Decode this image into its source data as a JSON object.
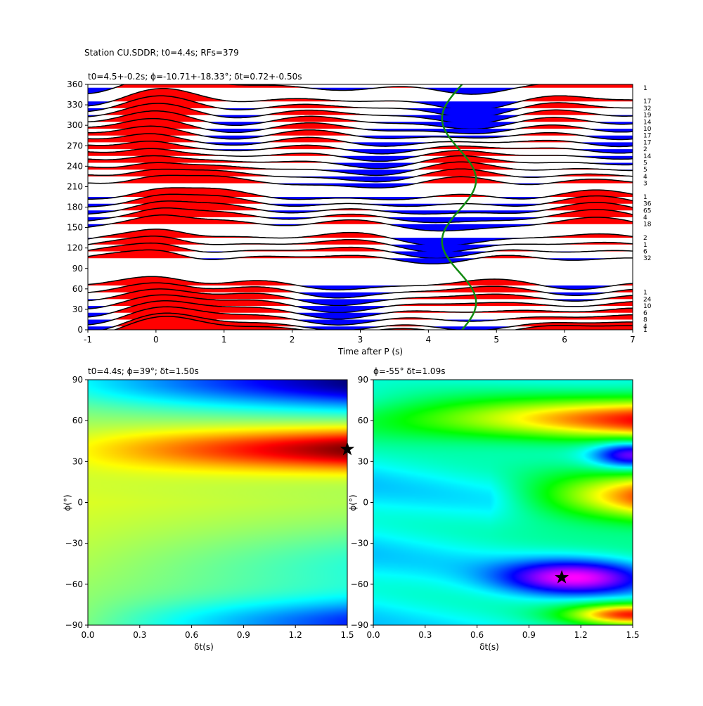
{
  "figure": {
    "suptitle": "Station CU.SDDR; t0=4.4s; RFs=379"
  },
  "chart_data": [
    {
      "type": "wiggle",
      "title": "t0=4.5+-0.2s; ϕ=-10.71+-18.33°; δt=0.72+-0.50s",
      "xlabel": "Time after P (s)",
      "ylabel": "",
      "xlim": [
        -1,
        7
      ],
      "ylim": [
        0,
        360
      ],
      "x_ticks": [
        "-1",
        "0",
        "1",
        "2",
        "3",
        "4",
        "5",
        "6",
        "7"
      ],
      "y_ticks": [
        "0",
        "30",
        "60",
        "90",
        "120",
        "150",
        "180",
        "210",
        "240",
        "270",
        "300",
        "330",
        "360"
      ],
      "trace_backazimuths": [
        0,
        5,
        15,
        25,
        35,
        45,
        55,
        65,
        105,
        115,
        125,
        135,
        155,
        165,
        175,
        185,
        195,
        215,
        225,
        235,
        245,
        255,
        265,
        275,
        285,
        295,
        305,
        315,
        325,
        335,
        355
      ],
      "trace_counts": [
        "1",
        "4",
        "8",
        "6",
        "10",
        "24",
        "1",
        "",
        "32",
        "6",
        "1",
        "2",
        "18",
        "4",
        "65",
        "36",
        "1",
        "3",
        "4",
        "5",
        "5",
        "14",
        "2",
        "17",
        "17",
        "10",
        "14",
        "19",
        "32",
        "17",
        "1"
      ],
      "fill_positive": "#ff0000",
      "fill_negative": "#0000ff",
      "t0_curve": {
        "color": "#118a11",
        "mean": 4.45,
        "amplitude": 0.25,
        "phase_deg": 10
      }
    },
    {
      "type": "heatmap",
      "title": "t0=4.4s; ϕ=39°; δt=1.50s",
      "xlabel": "δt(s)",
      "ylabel": "ϕ(°)",
      "xlim": [
        0,
        1.5
      ],
      "ylim": [
        -90,
        90
      ],
      "x_ticks": [
        "0.0",
        "0.3",
        "0.6",
        "0.9",
        "1.2",
        "1.5"
      ],
      "y_ticks": [
        "−90",
        "−60",
        "−30",
        "0",
        "30",
        "60",
        "90"
      ],
      "colormap": "jet",
      "best": {
        "dt": 1.5,
        "phi": 39
      }
    },
    {
      "type": "heatmap",
      "title": "ϕ=-55° δt=1.09s",
      "xlabel": "δt(s)",
      "ylabel": "ϕ(°)",
      "xlim": [
        0,
        1.5
      ],
      "ylim": [
        -90,
        90
      ],
      "x_ticks": [
        "0.0",
        "0.3",
        "0.6",
        "0.9",
        "1.2",
        "1.5"
      ],
      "y_ticks": [
        "−90",
        "−60",
        "−30",
        "0",
        "30",
        "60",
        "90"
      ],
      "colormap": "hsv",
      "best": {
        "dt": 1.09,
        "phi": -55
      }
    }
  ]
}
